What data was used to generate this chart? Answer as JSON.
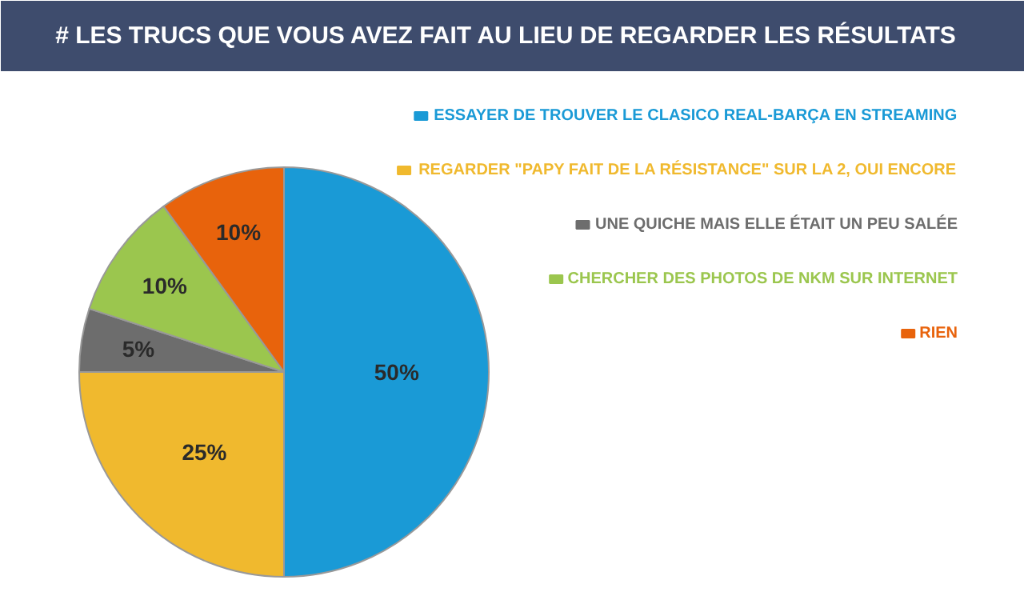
{
  "chart_data": {
    "type": "pie",
    "title": "# LES TRUCS QUE VOUS AVEZ FAIT AU LIEU DE REGARDER LES RÉSULTATS",
    "categories": [
      "ESSAYER DE TROUVER LE CLASICO REAL-BARÇA EN STREAMING",
      "REGARDER \"PAPY FAIT DE LA RÉSISTANCE\" SUR LA 2, OUI ENCORE",
      "UNE QUICHE MAIS ELLE ÉTAIT UN PEU SALÉE",
      "CHERCHER DES PHOTOS DE NKM SUR INTERNET",
      "RIEN"
    ],
    "values": [
      50,
      25,
      5,
      10,
      10
    ],
    "colors": [
      "#1a9ad6",
      "#f0b92e",
      "#6d6d6d",
      "#9bc64e",
      "#e8630c"
    ],
    "value_labels": [
      "50%",
      "25%",
      "5%",
      "10%",
      "10%"
    ],
    "legend": "top right"
  }
}
